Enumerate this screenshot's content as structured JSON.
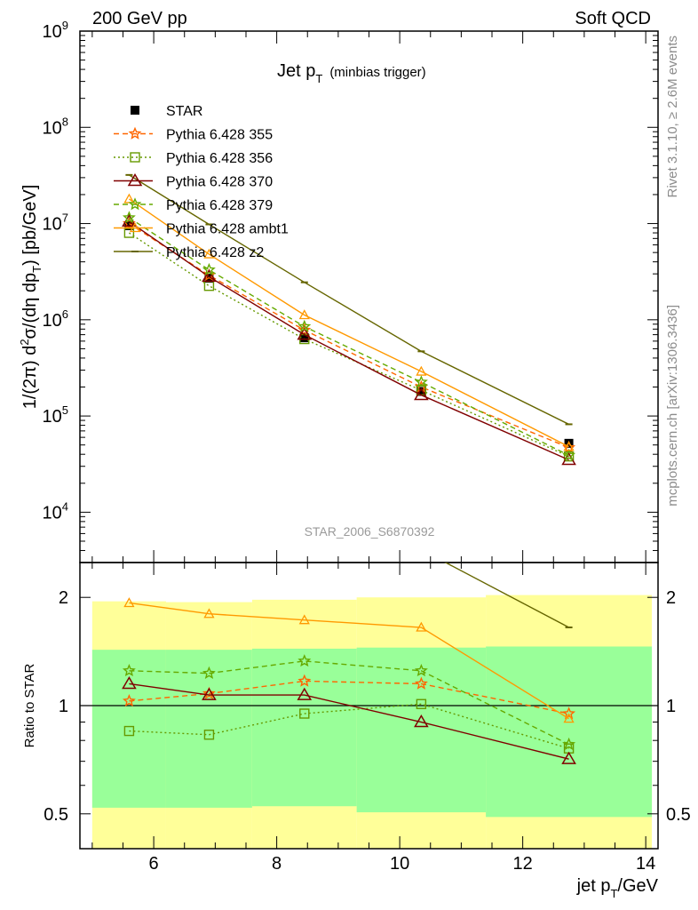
{
  "header": {
    "left": "200 GeV pp",
    "right": "Soft QCD"
  },
  "side_labels": {
    "rivet": "Rivet 3.1.10, ≥ 2.6M events",
    "source": "mcplots.cern.ch [arXiv:1306.3436]"
  },
  "colors": {
    "STAR": "#000000",
    "Pythia 6.428 355": "#ff6600",
    "Pythia 6.428 356": "#669900",
    "Pythia 6.428 370": "#800000",
    "Pythia 6.428 379": "#66aa00",
    "Pythia 6.428 ambt1": "#ff9900",
    "Pythia 6.428 z2": "#666600",
    "band_outer": "#ffff99",
    "band_inner": "#99ff99"
  },
  "chart_data": [
    {
      "type": "line",
      "title": "Jet p",
      "title_sub": "T",
      "title_note": "(minbias trigger)",
      "ylabel": "1/(2π) d²σ/(dη dp_T) [pb/GeV]",
      "yscale": "log",
      "ylim": [
        3000,
        1000000000
      ],
      "xlim": [
        4.8,
        14.2
      ],
      "y_tick_labels": [
        "10^4",
        "10^5",
        "10^6",
        "10^7",
        "10^8",
        "10^9"
      ],
      "histogram_id": "STAR_2006_S6870392",
      "legend_position": "top-left",
      "x": [
        5.6,
        6.9,
        8.45,
        10.35,
        12.75
      ],
      "series": [
        {
          "name": "STAR",
          "marker": "filled-square",
          "line": "none",
          "values": [
            9500000,
            2700000,
            650000,
            180000,
            52000
          ]
        },
        {
          "name": "Pythia 6.428 355",
          "marker": "star",
          "line": "dashed",
          "values": [
            10000000,
            2900000,
            780000,
            200000,
            47000
          ]
        },
        {
          "name": "Pythia 6.428 356",
          "marker": "open-square",
          "line": "dotted",
          "values": [
            8000000,
            2250000,
            630000,
            185000,
            38000
          ]
        },
        {
          "name": "Pythia 6.428 370",
          "marker": "open-triangle",
          "line": "solid",
          "values": [
            10500000,
            2800000,
            700000,
            165000,
            35000
          ]
        },
        {
          "name": "Pythia 6.428 379",
          "marker": "star",
          "line": "dashed",
          "values": [
            11500000,
            3300000,
            850000,
            225000,
            39000
          ]
        },
        {
          "name": "Pythia 6.428 ambt1",
          "marker": "small-open-triangle",
          "line": "solid",
          "values": [
            18000000,
            4800000,
            1120000,
            290000,
            48000
          ]
        },
        {
          "name": "Pythia 6.428 z2",
          "marker": "bar",
          "line": "solid",
          "values": [
            32000000,
            9800000,
            2450000,
            470000,
            82000
          ]
        }
      ]
    },
    {
      "type": "line",
      "ylabel": "Ratio to STAR",
      "xlabel": "jet p_T/GeV",
      "yscale": "log",
      "ylim": [
        0.4,
        2.5
      ],
      "xlim": [
        4.8,
        14.2
      ],
      "y_tick_labels": [
        "0.5",
        "1",
        "2"
      ],
      "x_tick_labels": [
        "6",
        "8",
        "10",
        "12",
        "14"
      ],
      "reference": 1,
      "bands": {
        "x_edges": [
          5.0,
          6.2,
          7.6,
          9.3,
          11.4,
          14.1
        ],
        "outer_lo": [
          0.34,
          0.34,
          0.34,
          0.34,
          0.34
        ],
        "outer_hi": [
          1.95,
          1.94,
          1.97,
          2.0,
          2.03
        ],
        "inner_lo": [
          0.52,
          0.52,
          0.525,
          0.505,
          0.49
        ],
        "inner_hi": [
          1.43,
          1.43,
          1.44,
          1.45,
          1.46
        ]
      },
      "x": [
        5.6,
        6.9,
        8.45,
        10.35,
        12.75
      ],
      "series": [
        {
          "name": "Pythia 6.428 355",
          "values": [
            1.03,
            1.08,
            1.17,
            1.15,
            0.95
          ]
        },
        {
          "name": "Pythia 6.428 356",
          "values": [
            0.85,
            0.83,
            0.95,
            1.01,
            0.76
          ]
        },
        {
          "name": "Pythia 6.428 370",
          "values": [
            1.15,
            1.07,
            1.07,
            0.9,
            0.71
          ]
        },
        {
          "name": "Pythia 6.428 379",
          "values": [
            1.25,
            1.23,
            1.33,
            1.25,
            0.78
          ]
        },
        {
          "name": "Pythia 6.428 ambt1",
          "values": [
            1.93,
            1.8,
            1.73,
            1.65,
            0.92
          ]
        },
        {
          "name": "Pythia 6.428 z2",
          "x": [
            10.2,
            12.75
          ],
          "values": [
            2.8,
            1.65
          ]
        }
      ]
    }
  ]
}
